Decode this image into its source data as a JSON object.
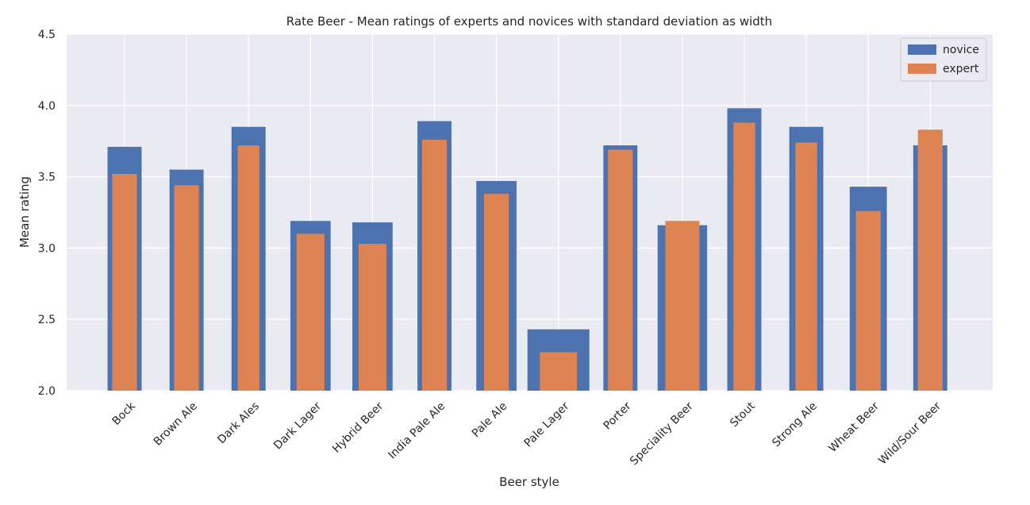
{
  "chart_data": {
    "type": "bar",
    "title": "Rate Beer - Mean ratings of experts and novices with standard deviation as width",
    "xlabel": "Beer style",
    "ylabel": "Mean rating",
    "ylim": [
      2.0,
      4.5
    ],
    "yticks": [
      "2.0",
      "2.5",
      "3.0",
      "3.5",
      "4.0",
      "4.5"
    ],
    "grid": true,
    "legend_position": "top-right",
    "categories": [
      "Bock",
      "Brown Ale",
      "Dark Ales",
      "Dark Lager",
      "Hybrid Beer",
      "India Pale Ale",
      "Pale Ale",
      "Pale Lager",
      "Porter",
      "Speciality Beer",
      "Stout",
      "Strong Ale",
      "Wheat Beer",
      "Wild/Sour Beer"
    ],
    "series": [
      {
        "name": "novice",
        "color": "#4c72b0",
        "values": [
          3.71,
          3.55,
          3.85,
          3.19,
          3.18,
          3.89,
          3.47,
          2.43,
          3.72,
          3.16,
          3.98,
          3.85,
          3.43,
          3.72
        ],
        "std_width": [
          0.55,
          0.55,
          0.55,
          0.65,
          0.65,
          0.55,
          0.65,
          1.0,
          0.55,
          0.8,
          0.55,
          0.55,
          0.6,
          0.55
        ]
      },
      {
        "name": "expert",
        "color": "#dd8452",
        "values": [
          3.52,
          3.44,
          3.72,
          3.1,
          3.03,
          3.76,
          3.38,
          2.27,
          3.69,
          3.19,
          3.88,
          3.74,
          3.26,
          3.83
        ],
        "std_width": [
          0.4,
          0.4,
          0.35,
          0.45,
          0.45,
          0.4,
          0.4,
          0.6,
          0.4,
          0.55,
          0.35,
          0.35,
          0.4,
          0.4
        ]
      }
    ]
  }
}
